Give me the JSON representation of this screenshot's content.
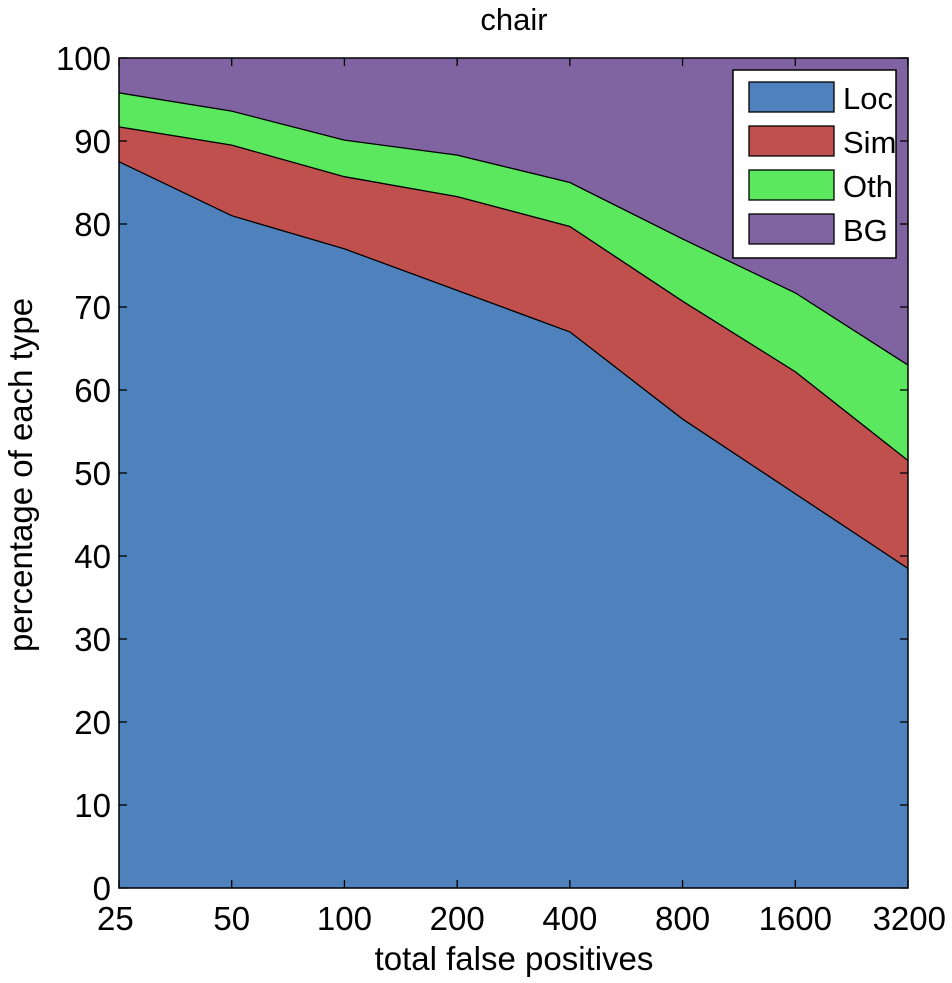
{
  "chart_data": {
    "type": "area",
    "stacked": true,
    "title": "chair",
    "xlabel": "total false positives",
    "ylabel": "percentage of each type",
    "x": [
      25,
      50,
      100,
      200,
      400,
      800,
      1600,
      3200
    ],
    "x_scale": "log2",
    "xlim": [
      25,
      3200
    ],
    "ylim": [
      0,
      100
    ],
    "yticks": [
      0,
      10,
      20,
      30,
      40,
      50,
      60,
      70,
      80,
      90,
      100
    ],
    "grid": false,
    "legend_position": "top-right",
    "series": [
      {
        "name": "Loc",
        "color": "#4F81BD",
        "values": [
          87.5,
          81.0,
          77.0,
          72.0,
          67.0,
          56.5,
          47.5,
          38.5
        ]
      },
      {
        "name": "Sim",
        "color": "#C0504D",
        "values": [
          4.2,
          8.5,
          8.7,
          11.3,
          12.7,
          14.2,
          14.7,
          13.0
        ]
      },
      {
        "name": "Oth",
        "color": "#5BE85F",
        "values": [
          4.1,
          4.1,
          4.4,
          5.0,
          5.3,
          7.5,
          9.5,
          11.5
        ]
      },
      {
        "name": "BG",
        "color": "#8064A2",
        "values": [
          4.2,
          6.4,
          9.9,
          11.7,
          15.0,
          21.8,
          28.3,
          37.0
        ]
      }
    ]
  }
}
